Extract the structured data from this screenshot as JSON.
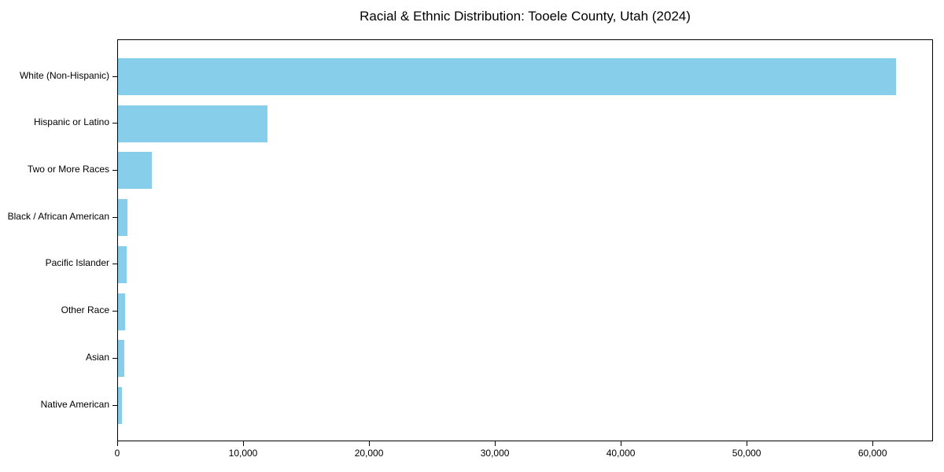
{
  "chart_data": {
    "type": "bar",
    "orientation": "horizontal",
    "title": "Racial & Ethnic Distribution: Tooele County, Utah (2024)",
    "categories": [
      "White (Non-Hispanic)",
      "Hispanic or Latino",
      "Two or More Races",
      "Black / African American",
      "Pacific Islander",
      "Other Race",
      "Asian",
      "Native American"
    ],
    "values": [
      61800,
      11900,
      2700,
      770,
      700,
      560,
      490,
      290
    ],
    "xlabel": "",
    "ylabel": "",
    "xlim": [
      0,
      64800
    ],
    "x_ticks": [
      0,
      10000,
      20000,
      30000,
      40000,
      50000,
      60000
    ],
    "x_tick_labels": [
      "0",
      "10,000",
      "20,000",
      "30,000",
      "40,000",
      "50,000",
      "60,000"
    ],
    "grid": false,
    "legend": null,
    "bar_color": "#87CEEB",
    "spine_color": "#000000",
    "text_color": "#000000",
    "background_color": "#FFFFFF"
  }
}
